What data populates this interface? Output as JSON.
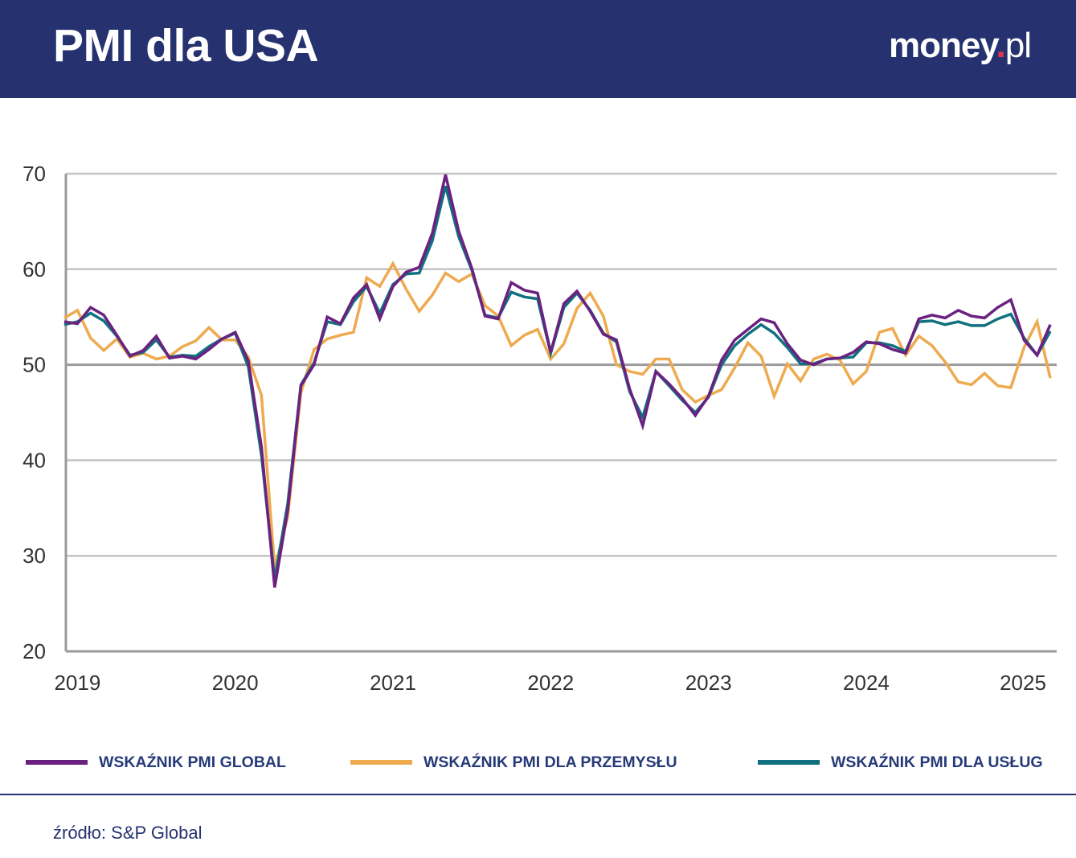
{
  "header": {
    "title": "PMI dla USA",
    "logo": "money.pl",
    "background": "#263270"
  },
  "chart_data": {
    "type": "line",
    "x_start": "2018-12",
    "x_frequency": "monthly",
    "xticks": [
      "2019",
      "2020",
      "2021",
      "2022",
      "2023",
      "2024",
      "2025"
    ],
    "yticks": [
      "70",
      "60",
      "50",
      "40",
      "30",
      "20"
    ],
    "ylim": [
      20,
      70
    ],
    "grid": true,
    "emphasized_gridline": 50,
    "legend_position": "bottom",
    "series": [
      {
        "name": "WSKAŹNIK PMI GLOBAL",
        "color": "#6b2180",
        "values": [
          54.5,
          54.3,
          56.0,
          55.2,
          53.1,
          50.9,
          51.5,
          53.0,
          50.7,
          50.9,
          50.6,
          51.6,
          52.7,
          53.4,
          50.4,
          41.4,
          26.7,
          34.8,
          47.8,
          50.0,
          55.0,
          54.3,
          57.0,
          58.4,
          54.8,
          58.2,
          59.7,
          60.2,
          63.8,
          69.9,
          64.0,
          60.1,
          55.1,
          54.8,
          58.6,
          57.8,
          57.5,
          51.3,
          56.4,
          57.7,
          55.6,
          53.2,
          52.6,
          47.5,
          43.6,
          49.3,
          48.0,
          46.5,
          44.7,
          46.7,
          50.5,
          52.6,
          53.7,
          54.8,
          54.4,
          52.2,
          50.5,
          50.0,
          50.6,
          50.7,
          51.3,
          52.4,
          52.2,
          51.6,
          51.2,
          54.8,
          55.2,
          54.9,
          55.7,
          55.1,
          54.9,
          56.0,
          56.8,
          52.6,
          51.0,
          54.2
        ]
      },
      {
        "name": "WSKAŹNIK PMI DLA PRZEMYSŁU",
        "color": "#eeaa4f",
        "values": [
          54.9,
          55.7,
          52.8,
          51.5,
          52.7,
          50.8,
          51.2,
          50.6,
          50.9,
          51.9,
          52.5,
          53.9,
          52.6,
          52.6,
          50.8,
          46.8,
          28.7,
          34.1,
          47.1,
          51.6,
          52.7,
          53.1,
          53.4,
          59.1,
          58.2,
          60.6,
          57.9,
          55.6,
          57.3,
          59.6,
          58.7,
          59.5,
          56.2,
          55.1,
          52.0,
          53.1,
          53.7,
          50.6,
          52.2,
          55.9,
          57.5,
          55.1,
          50.0,
          49.3,
          49.0,
          50.6,
          50.6,
          47.4,
          46.1,
          46.8,
          47.4,
          49.7,
          52.3,
          50.9,
          46.7,
          50.1,
          48.3,
          50.6,
          51.1,
          50.5,
          48.0,
          49.3,
          53.4,
          53.8,
          51.0,
          53.0,
          52.0,
          50.3,
          48.2,
          47.9,
          49.1,
          47.8,
          47.6,
          51.8,
          54.5,
          48.6
        ]
      },
      {
        "name": "WSKAŹNIK PMI DLA USŁUG",
        "color": "#11707f",
        "values": [
          54.2,
          54.5,
          55.4,
          54.6,
          53.0,
          51.0,
          51.3,
          52.6,
          50.8,
          51.0,
          50.9,
          51.9,
          52.7,
          53.3,
          49.8,
          40.5,
          27.5,
          35.5,
          47.9,
          50.2,
          54.5,
          54.2,
          56.6,
          58.2,
          55.4,
          58.4,
          59.5,
          59.6,
          63.0,
          68.7,
          63.4,
          59.9,
          55.2,
          54.9,
          57.6,
          57.1,
          56.9,
          51.2,
          56.0,
          57.5,
          55.7,
          53.3,
          52.4,
          47.2,
          44.5,
          49.3,
          47.8,
          46.3,
          45.0,
          46.6,
          50.0,
          52.0,
          53.2,
          54.2,
          53.3,
          51.8,
          50.1,
          50.1,
          50.6,
          50.7,
          50.8,
          52.3,
          52.3,
          52.0,
          51.4,
          54.5,
          54.6,
          54.2,
          54.5,
          54.1,
          54.1,
          54.8,
          55.3,
          52.8,
          51.0,
          53.5
        ]
      }
    ]
  },
  "footer": {
    "source": "źródło: S&P Global"
  }
}
